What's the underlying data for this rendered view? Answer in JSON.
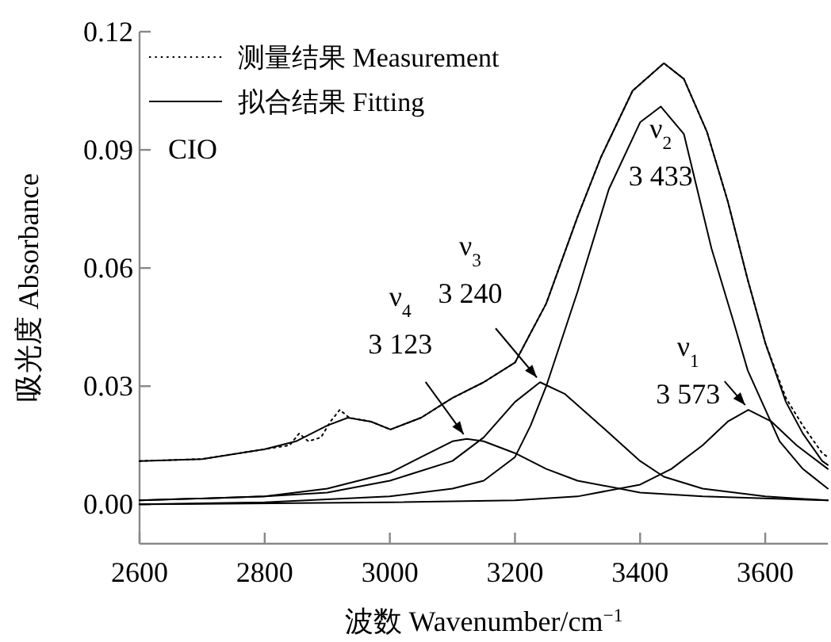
{
  "chart_data": {
    "type": "line",
    "xlabel": "波数 Wavenumber/cm$^{−1}$",
    "ylabel": "吸光度 Absorbance",
    "xlim": [
      2600,
      3700
    ],
    "ylim": [
      -0.01,
      0.12
    ],
    "xticks": [
      2600,
      2800,
      3000,
      3200,
      3400,
      3600
    ],
    "yticks": [
      {
        "value": 0,
        "label": "0.00"
      },
      {
        "value": 0.03,
        "label": "0.03"
      },
      {
        "value": 0.06,
        "label": "0.06"
      },
      {
        "value": 0.09,
        "label": "0.09"
      },
      {
        "value": 0.12,
        "label": "0.12"
      }
    ],
    "grid": false,
    "legend": "top left",
    "series": [
      {
        "name": "测量结果 Measurement",
        "color": "#000000",
        "line_style": "dotted",
        "x": [
          2600,
          2700,
          2800,
          2840,
          2855,
          2870,
          2890,
          2905,
          2920,
          2935,
          2970,
          3001,
          3050,
          3100,
          3150,
          3200,
          3250,
          3300,
          3337,
          3388,
          3438,
          3470,
          3507,
          3540,
          3572,
          3600,
          3633,
          3660,
          3691,
          3700
        ],
        "values": [
          0.011,
          0.0115,
          0.014,
          0.015,
          0.018,
          0.016,
          0.017,
          0.021,
          0.024,
          0.022,
          0.021,
          0.019,
          0.022,
          0.027,
          0.031,
          0.036,
          0.051,
          0.073,
          0.088,
          0.105,
          0.112,
          0.108,
          0.0945,
          0.077,
          0.057,
          0.041,
          0.027,
          0.02,
          0.013,
          0.012
        ]
      },
      {
        "name": "拟合结果 Fitting",
        "color": "#000000",
        "line_style": "solid",
        "x": [
          2600,
          2700,
          2800,
          2850,
          2900,
          2933,
          2970,
          3001,
          3050,
          3100,
          3150,
          3200,
          3250,
          3300,
          3337,
          3388,
          3438,
          3470,
          3507,
          3540,
          3572,
          3600,
          3633,
          3660,
          3691,
          3700
        ],
        "values": [
          0.011,
          0.0115,
          0.014,
          0.016,
          0.02,
          0.022,
          0.021,
          0.019,
          0.022,
          0.027,
          0.031,
          0.036,
          0.051,
          0.073,
          0.088,
          0.105,
          0.112,
          0.108,
          0.0945,
          0.077,
          0.057,
          0.041,
          0.026,
          0.018,
          0.011,
          0.01
        ]
      },
      {
        "color": "#000000",
        "line_style": "solid",
        "x": [
          2600,
          2800,
          2900,
          3000,
          3050,
          3100,
          3123,
          3150,
          3200,
          3250,
          3300,
          3400,
          3500,
          3700
        ],
        "values": [
          0.001,
          0.002,
          0.004,
          0.008,
          0.012,
          0.016,
          0.0166,
          0.016,
          0.013,
          0.009,
          0.006,
          0.003,
          0.002,
          0.001
        ]
      },
      {
        "color": "#000000",
        "line_style": "solid",
        "x": [
          2600,
          2800,
          2900,
          3000,
          3100,
          3150,
          3200,
          3240,
          3280,
          3337,
          3400,
          3438,
          3500,
          3600,
          3700
        ],
        "values": [
          0.001,
          0.002,
          0.003,
          0.006,
          0.011,
          0.017,
          0.026,
          0.031,
          0.028,
          0.02,
          0.011,
          0.007,
          0.004,
          0.002,
          0.001
        ]
      },
      {
        "color": "#000000",
        "line_style": "solid",
        "x": [
          2600,
          2800,
          3000,
          3100,
          3150,
          3200,
          3225,
          3250,
          3300,
          3350,
          3400,
          3433,
          3470,
          3514,
          3550,
          3572,
          3623,
          3660,
          3700
        ],
        "values": [
          0,
          0.0005,
          0.002,
          0.004,
          0.006,
          0.012,
          0.02,
          0.03,
          0.054,
          0.08,
          0.097,
          0.101,
          0.094,
          0.065,
          0.046,
          0.034,
          0.016,
          0.009,
          0.004
        ]
      },
      {
        "color": "#000000",
        "line_style": "solid",
        "x": [
          2600,
          3000,
          3200,
          3300,
          3400,
          3450,
          3500,
          3540,
          3573,
          3610,
          3650,
          3700
        ],
        "values": [
          0,
          0.0005,
          0.001,
          0.002,
          0.005,
          0.009,
          0.015,
          0.021,
          0.024,
          0.021,
          0.015,
          0.009
        ]
      }
    ],
    "annotations": [
      "CIO",
      {
        "text": "ν$_{4}$\n3 123",
        "x": 3123,
        "y": 0.0166
      },
      {
        "text": "ν$_{3}$\n3 240",
        "x": 3240,
        "y": 0.031
      },
      {
        "text": "ν$_{2}$\n3 433",
        "x": 3433,
        "y": 0.101
      },
      {
        "text": "ν$_{1}$\n3 573",
        "x": 3573,
        "y": 0.024
      }
    ]
  }
}
